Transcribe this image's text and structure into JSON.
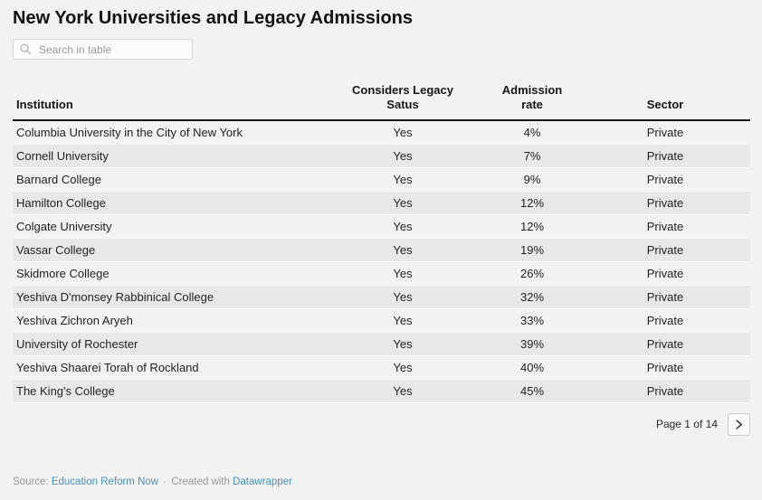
{
  "search": {
    "placeholder": "Search in table"
  },
  "chart_data": {
    "type": "table",
    "title": "New York Universities and Legacy Admissions",
    "columns": [
      "Institution",
      "Considers Legacy Satus",
      "Admission rate",
      "Sector"
    ],
    "rows": [
      [
        "Columbia University in the City of New York",
        "Yes",
        "4%",
        "Private"
      ],
      [
        "Cornell University",
        "Yes",
        "7%",
        "Private"
      ],
      [
        "Barnard College",
        "Yes",
        "9%",
        "Private"
      ],
      [
        "Hamilton College",
        "Yes",
        "12%",
        "Private"
      ],
      [
        "Colgate University",
        "Yes",
        "12%",
        "Private"
      ],
      [
        "Vassar College",
        "Yes",
        "19%",
        "Private"
      ],
      [
        "Skidmore College",
        "Yes",
        "26%",
        "Private"
      ],
      [
        "Yeshiva D'monsey Rabbinical College",
        "Yes",
        "32%",
        "Private"
      ],
      [
        "Yeshiva Zichron Aryeh",
        "Yes",
        "33%",
        "Private"
      ],
      [
        "University of Rochester",
        "Yes",
        "39%",
        "Private"
      ],
      [
        "Yeshiva Shaarei Torah of Rockland",
        "Yes",
        "40%",
        "Private"
      ],
      [
        "The King's College",
        "Yes",
        "45%",
        "Private"
      ]
    ],
    "layout": {
      "zebra_stripes": true,
      "header_rule": true
    }
  },
  "pagination": {
    "label": "Page 1 of 14"
  },
  "footer": {
    "source_label": "Source:",
    "source_link": "Education Reform Now",
    "separator": "·",
    "created_label": "Created with",
    "created_link": "Datawrapper"
  },
  "colors": {
    "page_background": "#f2f2f2",
    "zebra_row": "#e8e8e8",
    "header_rule": "#161616",
    "link": "#4a8fb3",
    "muted_text": "#979797"
  }
}
